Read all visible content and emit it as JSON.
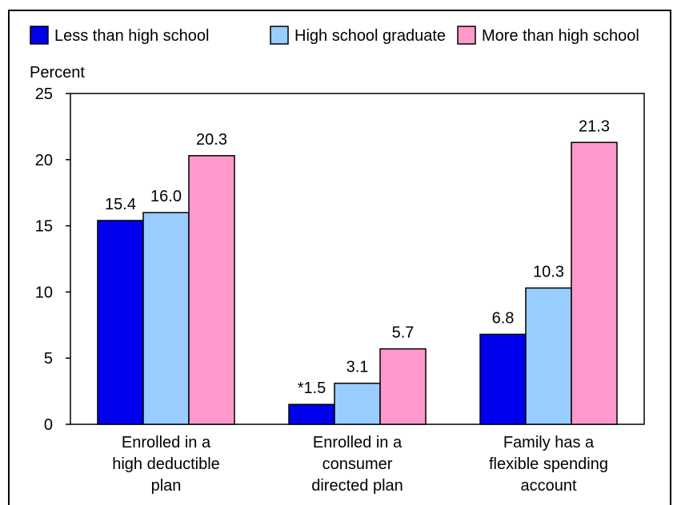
{
  "chart_data": {
    "type": "bar",
    "ylabel": "Percent",
    "ylim": [
      0,
      25
    ],
    "yticks": [
      0,
      5,
      10,
      15,
      20,
      25
    ],
    "categories": [
      [
        "Enrolled in a",
        "high deductible",
        "plan"
      ],
      [
        "Enrolled in a",
        "consumer",
        "directed plan"
      ],
      [
        "Family has a",
        "flexible spending",
        "account"
      ]
    ],
    "series": [
      {
        "name": "Less than high school",
        "color": "#0000ee",
        "values": [
          15.4,
          1.5,
          6.8
        ],
        "labels": [
          "15.4",
          "*1.5",
          "6.8"
        ]
      },
      {
        "name": "High school graduate",
        "color": "#99ccff",
        "values": [
          16.0,
          3.1,
          10.3
        ],
        "labels": [
          "16.0",
          "3.1",
          "10.3"
        ]
      },
      {
        "name": "More than high school",
        "color": "#ff99cc",
        "values": [
          20.3,
          5.7,
          21.3
        ],
        "labels": [
          "20.3",
          "5.7",
          "21.3"
        ]
      }
    ],
    "legend_position": "top",
    "grid": false
  }
}
